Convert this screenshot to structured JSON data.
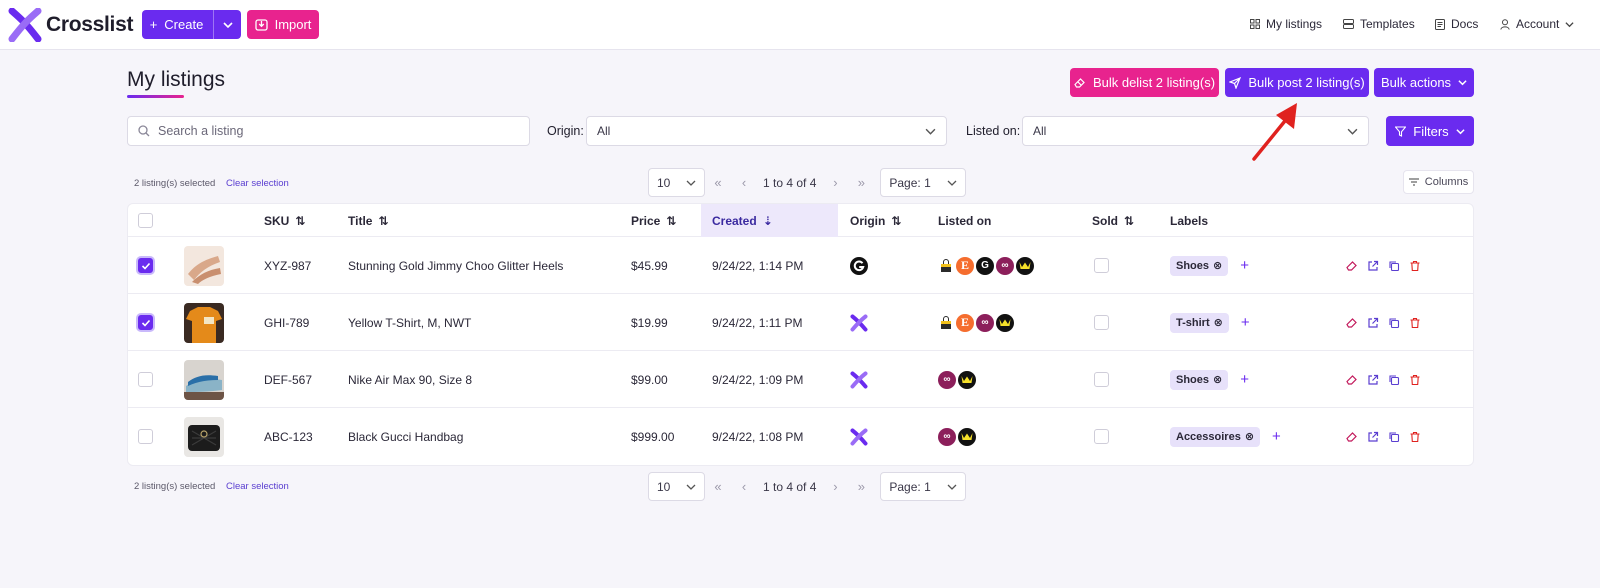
{
  "app": {
    "name": "Crosslist"
  },
  "header": {
    "create_label": "Create",
    "import_label": "Import",
    "nav": [
      {
        "label": "My listings",
        "icon": "grid-icon"
      },
      {
        "label": "Templates",
        "icon": "templates-icon"
      },
      {
        "label": "Docs",
        "icon": "doc-icon"
      },
      {
        "label": "Account",
        "icon": "user-icon"
      }
    ]
  },
  "page": {
    "title": "My listings",
    "bulk_delist_label": "Bulk delist 2 listing(s)",
    "bulk_post_label": "Bulk post 2 listing(s)",
    "bulk_actions_label": "Bulk actions"
  },
  "filters": {
    "search_placeholder": "Search a listing",
    "origin_label": "Origin:",
    "origin_value": "All",
    "listed_on_label": "Listed on:",
    "listed_on_value": "All",
    "filters_label": "Filters"
  },
  "pagination": {
    "per_page": "10",
    "range": "1 to 4 of 4",
    "page_label": "Page:",
    "page_value": "1",
    "selected_info": "2 listing(s) selected",
    "clear_selection": "Clear selection",
    "columns_label": "Columns"
  },
  "table": {
    "headers": {
      "sku": "SKU",
      "title": "Title",
      "price": "Price",
      "created": "Created",
      "origin": "Origin",
      "listed_on": "Listed on",
      "sold": "Sold",
      "labels": "Labels"
    },
    "rows": [
      {
        "selected": true,
        "sku": "XYZ-987",
        "title": "Stunning Gold Jimmy Choo Glitter Heels",
        "price": "$45.99",
        "created": "9/24/22, 1:14 PM",
        "origin": "google-icon",
        "marketplaces": [
          "bag",
          "E",
          "G",
          "link",
          "crown"
        ],
        "label": "Shoes",
        "thumb_color": "#d9a88a"
      },
      {
        "selected": true,
        "sku": "GHI-789",
        "title": "Yellow T-Shirt, M, NWT",
        "price": "$19.99",
        "created": "9/24/22, 1:11 PM",
        "origin": "crosslist-icon",
        "marketplaces": [
          "bag",
          "E",
          "link",
          "crown"
        ],
        "label": "T-shirt",
        "thumb_color": "#e48a1a"
      },
      {
        "selected": false,
        "sku": "DEF-567",
        "title": "Nike Air Max 90, Size 8",
        "price": "$99.00",
        "created": "9/24/22, 1:09 PM",
        "origin": "crosslist-icon",
        "marketplaces": [
          "link",
          "crown"
        ],
        "label": "Shoes",
        "thumb_color": "#8ab3c7"
      },
      {
        "selected": false,
        "sku": "ABC-123",
        "title": "Black Gucci Handbag",
        "price": "$999.00",
        "created": "9/24/22, 1:08 PM",
        "origin": "crosslist-icon",
        "marketplaces": [
          "link",
          "crown"
        ],
        "label": "Accessoires",
        "thumb_color": "#2a2a2a"
      }
    ]
  },
  "colors": {
    "primary": "#6a2bef",
    "pink": "#e8238e",
    "arrow": "#e0221f"
  }
}
